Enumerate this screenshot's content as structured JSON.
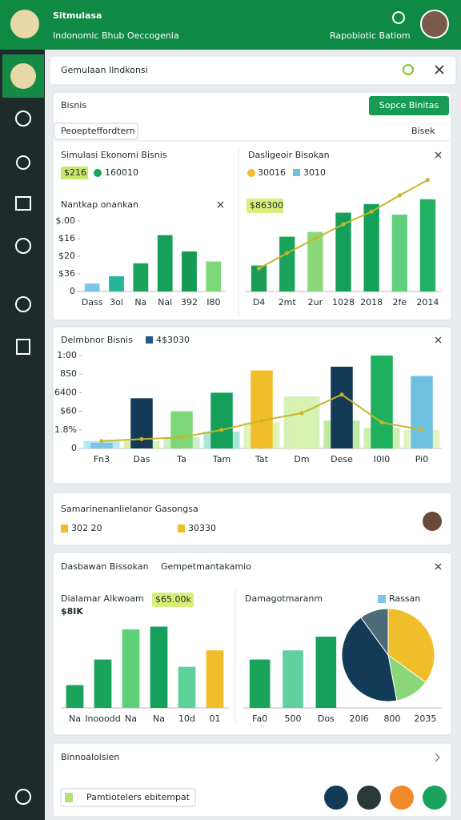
{
  "ui": {
    "header": {
      "title": "Sitmulasa",
      "subtitle": "Indonomic Bhub Oeccogenia",
      "user": "Rapobiotic Batiom"
    },
    "search": "Gemulaan Ilndkonsi",
    "panel": {
      "title": "Bisnis",
      "button": "Sopce Binitas",
      "tag": "Peoepteffordtern",
      "dropdown": "Bisek",
      "left": {
        "title": "Simulasi Ekonomi Bisnis",
        "legend": [
          "$216",
          "160010"
        ]
      },
      "right": {
        "legend": [
          "30016",
          "3010"
        ],
        "badge": "$86300"
      }
    },
    "card2": {
      "legend": "4$3030"
    },
    "card3": {
      "title": "Samarinenanlielanor Gasongsa",
      "items": [
        "302 20",
        "30330"
      ]
    },
    "card4": {
      "title": "Dasbawan Bissokan",
      "subtitle": "Gempetmantakamio",
      "badge": "$65.00k",
      "note": "$8IK",
      "legend": "Rassan"
    },
    "card5": {
      "title": "Binnoalolsien",
      "input": "Pamtiotelers ebitempat"
    }
  },
  "chart_data": [
    {
      "type": "bar",
      "title": "Nantkap onankan",
      "categories": [
        "Dass",
        "3ol",
        "Na",
        "Nal",
        "392",
        "I80"
      ],
      "values": [
        4.5,
        8.6,
        16,
        32,
        22.7,
        17
      ],
      "colors": [
        "#7cc4e8",
        "#26b59a",
        "#1aa35a",
        "#14a05a",
        "#149a55",
        "#7dd87a"
      ],
      "ylim": [
        0,
        40
      ],
      "yticks": [
        0,
        {
          "value": 10,
          "label": "$36"
        },
        {
          "value": 20,
          "label": "$20"
        },
        {
          "value": 30,
          "label": "$16"
        },
        {
          "value": 40,
          "label": "$.00"
        }
      ]
    },
    {
      "type": "combo",
      "title": "Dasligeoir Bisokan",
      "categories": [
        "D4",
        "2mt",
        "2ur",
        "1028",
        "2018",
        "2fe",
        "2014"
      ],
      "ylim": [
        0,
        120
      ],
      "series": [
        {
          "type": "bar",
          "values": [
            27,
            57,
            62,
            82,
            91,
            80,
            96
          ],
          "colors": [
            "#1a9c55",
            "#1aa35a",
            "#8bd87a",
            "#14a05a",
            "#13a058",
            "#5fd17a",
            "#22b062"
          ]
        },
        {
          "type": "line",
          "values": [
            24,
            40,
            55,
            70,
            83,
            100,
            116
          ],
          "color": "#c9b52a"
        }
      ]
    },
    {
      "type": "combo",
      "title": "Delmbnor Bisnis",
      "categories": [
        "Fn3",
        "Das",
        "Ta",
        "Tam",
        "Tat",
        "Dm",
        "Dese",
        "I0I0",
        "Pi0"
      ],
      "ylim": [
        0,
        5
      ],
      "yticks": [
        0,
        {
          "value": 1,
          "label": "1.8%"
        },
        {
          "value": 2,
          "label": "$60"
        },
        {
          "value": 3,
          "label": "6400"
        },
        {
          "value": 4,
          "label": "8S0"
        },
        {
          "value": 5,
          "label": "1:00"
        }
      ],
      "series": [
        {
          "type": "bar",
          "values": [
            0.4,
            0.4,
            0.6,
            0.9,
            1.4,
            2.8,
            1.5,
            1.1,
            1.0
          ],
          "colors": [
            "#b7e7f0",
            "#d6f2b0",
            "#c9f0c0",
            "#a9e8d8",
            "#dff5b8",
            "#d4f2b6",
            "#bfeaa0",
            "#cdefb0",
            "#e2f5c0"
          ]
        },
        {
          "type": "bar",
          "values": [
            0.3,
            2.7,
            2.0,
            3.0,
            4.2,
            2.7,
            4.4,
            5.0,
            3.9
          ],
          "colors": [
            "#7cc4e8",
            "#133a57",
            "#7dd87a",
            "#14a05a",
            "#f0be2a",
            "#d8f2b0",
            "#133a57",
            "#1fb05e",
            "#6ec0e0"
          ]
        },
        {
          "type": "line",
          "values": [
            0.4,
            0.5,
            0.6,
            1.0,
            1.5,
            1.9,
            2.9,
            1.4,
            1.0
          ],
          "color": "#c9b52a"
        }
      ]
    },
    {
      "type": "bar",
      "title": "Dialamar Alkwoam",
      "categories": [
        "Na",
        "Inooodd",
        "Na",
        "Na",
        "10d",
        "01"
      ],
      "ylim": [
        0,
        100
      ],
      "values": [
        25,
        53,
        86,
        89,
        45,
        63
      ],
      "colors": [
        "#1aa35a",
        "#1aa35a",
        "#5fd17a",
        "#14a05a",
        "#5fd19a",
        "#f0be2a"
      ]
    },
    {
      "type": "bar",
      "categories": [
        "Fa0",
        "500",
        "Dos",
        "20I6",
        "800",
        "2035"
      ],
      "ylim": [
        0,
        100
      ],
      "values": [
        53,
        63,
        78,
        null,
        null,
        null
      ],
      "colors": [
        "#1aa35a",
        "#5fd1a0",
        "#14a05a",
        "#14a05a",
        "#14a05a",
        "#14a05a"
      ]
    },
    {
      "type": "pie",
      "title": "Damagotmaranm",
      "values": [
        35,
        12,
        43,
        10
      ],
      "colors": [
        "#f0be2a",
        "#8bd87a",
        "#133a57",
        "#4d6a7a"
      ]
    }
  ]
}
